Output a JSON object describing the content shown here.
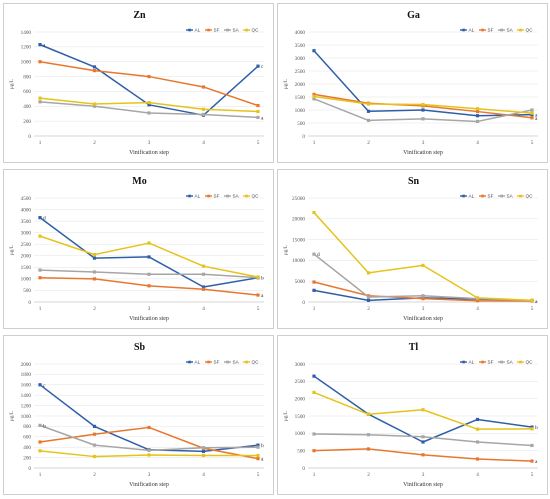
{
  "chart_data": [
    {
      "type": "line",
      "title": "Zn",
      "xlabel": "Vinification step",
      "ylabel": "μg/L",
      "ylim": [
        0,
        1400
      ],
      "yticks": [
        0,
        200,
        400,
        600,
        800,
        1000,
        1200,
        1400
      ],
      "categories": [
        "1",
        "2",
        "3",
        "4",
        "5"
      ],
      "series": [
        {
          "name": "AL",
          "values": [
            1230,
            930,
            420,
            280,
            940
          ],
          "letters": [
            "a",
            "",
            "",
            "",
            "c"
          ]
        },
        {
          "name": "SF",
          "values": [
            1000,
            880,
            800,
            660,
            410
          ],
          "letters": [
            "",
            "",
            "",
            "",
            ""
          ]
        },
        {
          "name": "SA",
          "values": [
            460,
            400,
            310,
            290,
            250
          ],
          "letters": [
            "",
            "",
            "",
            "",
            "a"
          ]
        },
        {
          "name": "QC",
          "values": [
            510,
            430,
            450,
            360,
            330
          ],
          "letters": [
            "",
            "",
            "",
            "",
            ""
          ]
        }
      ]
    },
    {
      "type": "line",
      "title": "Ga",
      "xlabel": "Vinification step",
      "ylabel": "μg/L",
      "ylim": [
        0,
        4000
      ],
      "yticks": [
        0,
        500,
        1000,
        1500,
        2000,
        2500,
        3000,
        3500,
        4000
      ],
      "categories": [
        "1",
        "2",
        "3",
        "4",
        "5"
      ],
      "series": [
        {
          "name": "AL",
          "values": [
            3280,
            950,
            1000,
            780,
            820
          ],
          "letters": [
            "",
            "",
            "",
            "",
            "a"
          ]
        },
        {
          "name": "SF",
          "values": [
            1600,
            1260,
            1160,
            940,
            700
          ],
          "letters": [
            "",
            "",
            "",
            "",
            "a"
          ]
        },
        {
          "name": "SA",
          "values": [
            1430,
            600,
            660,
            560,
            1000
          ],
          "letters": [
            "",
            "",
            "",
            "",
            ""
          ]
        },
        {
          "name": "QC",
          "values": [
            1520,
            1230,
            1210,
            1050,
            880
          ],
          "letters": [
            "",
            "",
            "",
            "",
            ""
          ]
        }
      ]
    },
    {
      "type": "line",
      "title": "Mo",
      "xlabel": "Vinification step",
      "ylabel": "μg/L",
      "ylim": [
        0,
        4500
      ],
      "yticks": [
        0,
        500,
        1000,
        1500,
        2000,
        2500,
        3000,
        3500,
        4000,
        4500
      ],
      "categories": [
        "1",
        "2",
        "3",
        "4",
        "5"
      ],
      "series": [
        {
          "name": "AL",
          "values": [
            3650,
            1900,
            1950,
            650,
            1050
          ],
          "letters": [
            "d",
            "",
            "",
            "",
            "b"
          ]
        },
        {
          "name": "SF",
          "values": [
            1050,
            1000,
            700,
            550,
            300
          ],
          "letters": [
            "",
            "",
            "",
            "",
            "a"
          ]
        },
        {
          "name": "SA",
          "values": [
            1380,
            1300,
            1200,
            1200,
            1050
          ],
          "letters": [
            "",
            "",
            "",
            "",
            ""
          ]
        },
        {
          "name": "QC",
          "values": [
            2850,
            2050,
            2550,
            1550,
            1080
          ],
          "letters": [
            "",
            "",
            "",
            "",
            ""
          ]
        }
      ]
    },
    {
      "type": "line",
      "title": "Sn",
      "xlabel": "Vinification step",
      "ylabel": "μg/L",
      "ylim": [
        0,
        25000
      ],
      "yticks": [
        0,
        5000,
        10000,
        15000,
        20000,
        25000
      ],
      "categories": [
        "1",
        "2",
        "3",
        "4",
        "5"
      ],
      "series": [
        {
          "name": "AL",
          "values": [
            2800,
            400,
            1000,
            700,
            350
          ],
          "letters": [
            "",
            "",
            "",
            "",
            ""
          ]
        },
        {
          "name": "SF",
          "values": [
            4800,
            1500,
            800,
            300,
            250
          ],
          "letters": [
            "",
            "",
            "",
            "",
            "a"
          ]
        },
        {
          "name": "SA",
          "values": [
            11500,
            1200,
            1500,
            800,
            400
          ],
          "letters": [
            "d",
            "",
            "",
            "",
            ""
          ]
        },
        {
          "name": "QC",
          "values": [
            21500,
            7000,
            8800,
            1000,
            400
          ],
          "letters": [
            "",
            "",
            "",
            "",
            ""
          ]
        }
      ]
    },
    {
      "type": "line",
      "title": "Sb",
      "xlabel": "Vinification step",
      "ylabel": "μg/L",
      "ylim": [
        0,
        2000
      ],
      "yticks": [
        0,
        200,
        400,
        600,
        800,
        1000,
        1200,
        1400,
        1600,
        1800,
        2000
      ],
      "categories": [
        "1",
        "2",
        "3",
        "4",
        "5"
      ],
      "series": [
        {
          "name": "AL",
          "values": [
            1600,
            800,
            350,
            320,
            440
          ],
          "letters": [
            "c",
            "",
            "",
            "",
            "b"
          ]
        },
        {
          "name": "SF",
          "values": [
            500,
            650,
            780,
            380,
            180
          ],
          "letters": [
            "",
            "",
            "",
            "",
            "a"
          ]
        },
        {
          "name": "SA",
          "values": [
            820,
            440,
            340,
            390,
            400
          ],
          "letters": [
            "b",
            "",
            "",
            "",
            ""
          ]
        },
        {
          "name": "QC",
          "values": [
            330,
            220,
            250,
            240,
            240
          ],
          "letters": [
            "",
            "",
            "",
            "",
            ""
          ]
        }
      ]
    },
    {
      "type": "line",
      "title": "Tl",
      "xlabel": "Vinification step",
      "ylabel": "μg/L",
      "ylim": [
        0,
        3000
      ],
      "yticks": [
        0,
        500,
        1000,
        1500,
        2000,
        2500,
        3000
      ],
      "categories": [
        "1",
        "2",
        "3",
        "4",
        "5"
      ],
      "series": [
        {
          "name": "AL",
          "values": [
            2650,
            1550,
            750,
            1400,
            1180
          ],
          "letters": [
            "",
            "",
            "",
            "",
            "b"
          ]
        },
        {
          "name": "SF",
          "values": [
            500,
            550,
            380,
            260,
            200
          ],
          "letters": [
            "",
            "",
            "",
            "",
            "a"
          ]
        },
        {
          "name": "SA",
          "values": [
            980,
            960,
            900,
            750,
            650
          ],
          "letters": [
            "",
            "",
            "",
            "",
            ""
          ]
        },
        {
          "name": "QC",
          "values": [
            2180,
            1550,
            1680,
            1120,
            1130
          ],
          "letters": [
            "",
            "",
            "",
            "",
            ""
          ]
        }
      ]
    }
  ],
  "colors": {
    "AL": "#2f5fa8",
    "SF": "#e8772e",
    "SA": "#a6a6a6",
    "QC": "#e6c31b"
  }
}
